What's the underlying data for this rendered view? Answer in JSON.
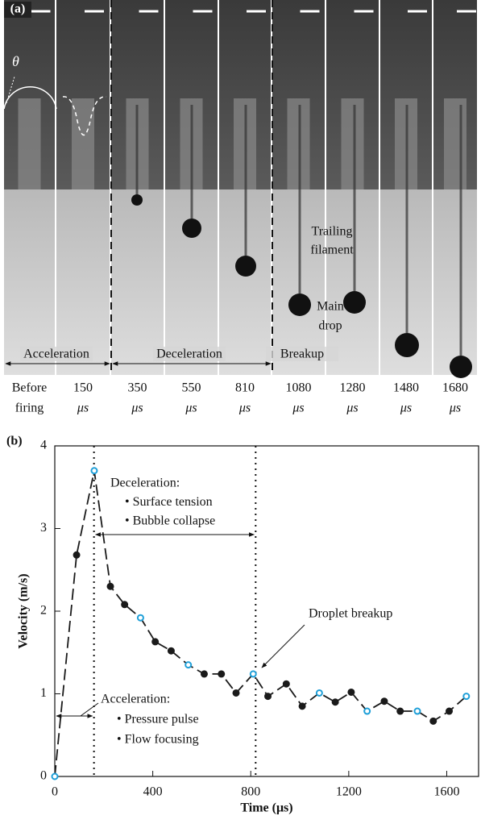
{
  "panel_a": {
    "label": "(a)",
    "frames": [
      [
        "Before",
        "firing"
      ],
      [
        "150",
        "μs"
      ],
      [
        "350",
        "μs"
      ],
      [
        "550",
        "μs"
      ],
      [
        "810",
        "μs"
      ],
      [
        "1080",
        "μs"
      ],
      [
        "1280",
        "μs"
      ],
      [
        "1480",
        "μs"
      ],
      [
        "1680",
        "μs"
      ]
    ],
    "phases": [
      "Acceleration",
      "Deceleration",
      "Breakup"
    ],
    "theta": "θ",
    "trailing": [
      "Trailing",
      "filament"
    ],
    "main": [
      "Main",
      "drop"
    ]
  },
  "chart_data": {
    "type": "line",
    "panel_label": "(b)",
    "xlabel": "Time (μs)",
    "ylabel": "Velocity (m/s)",
    "x": [
      0,
      89,
      161,
      227,
      285,
      350,
      410,
      475,
      545,
      610,
      680,
      740,
      810,
      870,
      945,
      1010,
      1080,
      1145,
      1210,
      1275,
      1345,
      1410,
      1480,
      1545,
      1610,
      1680
    ],
    "values": [
      0,
      2.68,
      3.7,
      2.3,
      2.08,
      1.92,
      1.63,
      1.52,
      1.35,
      1.24,
      1.24,
      1.01,
      1.24,
      0.97,
      1.12,
      0.85,
      1.01,
      0.9,
      1.02,
      0.79,
      0.91,
      0.79,
      0.79,
      0.67,
      0.79,
      0.97
    ],
    "markers": [
      "open",
      "filled",
      "open",
      "filled",
      "filled",
      "open",
      "filled",
      "filled",
      "open",
      "filled",
      "filled",
      "filled",
      "open",
      "filled",
      "filled",
      "filled",
      "open",
      "filled",
      "filled",
      "open",
      "filled",
      "filled",
      "open",
      "filled",
      "filled",
      "open"
    ],
    "colors": {
      "filled": "#1a1a1a",
      "open": "#1e9fd8",
      "line": "#1a1a1a"
    },
    "line_style": "dashed",
    "xlim": [
      0,
      1730
    ],
    "ylim": [
      0,
      4
    ],
    "xticks": [
      0,
      400,
      800,
      1200,
      1600
    ],
    "yticks": [
      0,
      1,
      2,
      3,
      4
    ],
    "vlines": [
      160,
      820
    ],
    "annotations": {
      "decel": [
        "Deceleration:",
        "• Surface tension",
        "• Bubble collapse"
      ],
      "breakup": "Droplet breakup",
      "accel": [
        "Acceleration:",
        "• Pressure pulse",
        "• Flow focusing"
      ]
    }
  }
}
